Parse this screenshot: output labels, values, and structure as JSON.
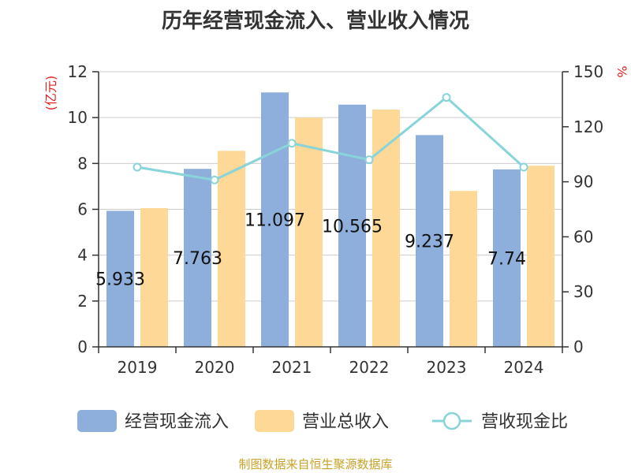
{
  "title": "历年经营现金流入、营业收入情况",
  "source": "制图数据来自恒生聚源数据库",
  "chart_data": {
    "type": "bar",
    "title": "历年经营现金流入、营业收入情况",
    "categories": [
      "2019",
      "2020",
      "2021",
      "2022",
      "2023",
      "2024"
    ],
    "series": [
      {
        "name": "经营现金流入",
        "type": "bar",
        "axis": "left",
        "color": "#8eaedc",
        "values": [
          5.933,
          7.763,
          11.097,
          10.565,
          9.237,
          7.74
        ],
        "labels": [
          "5.933",
          "7.763",
          "11.097",
          "10.565",
          "9.237",
          "7.74"
        ]
      },
      {
        "name": "营业总收入",
        "type": "bar",
        "axis": "left",
        "color": "#fdd897",
        "values": [
          6.05,
          8.55,
          10.0,
          10.35,
          6.8,
          7.9
        ]
      },
      {
        "name": "营收现金比",
        "type": "line",
        "axis": "right",
        "color": "#88d4d9",
        "values": [
          98,
          91,
          111,
          102,
          136,
          98
        ]
      }
    ],
    "yleft": {
      "label": "(亿元)",
      "min": 0,
      "max": 12,
      "ticks": [
        "0",
        "2",
        "4",
        "6",
        "8",
        "10",
        "12"
      ]
    },
    "yright": {
      "label": "%",
      "min": 0,
      "max": 150,
      "ticks": [
        "0",
        "30",
        "60",
        "90",
        "120",
        "150"
      ]
    },
    "grid": true,
    "legend": "bottom"
  }
}
